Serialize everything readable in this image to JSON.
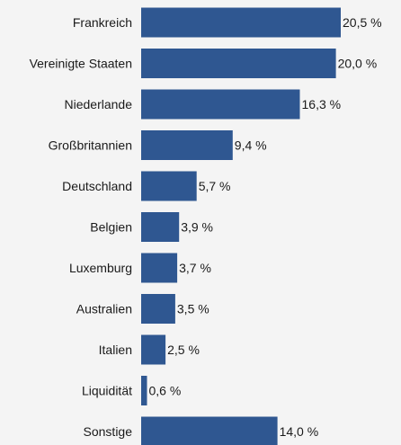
{
  "chart_data": {
    "type": "bar",
    "orientation": "horizontal",
    "categories": [
      "Frankreich",
      "Vereinigte Staaten",
      "Niederlande",
      "Großbritannien",
      "Deutschland",
      "Belgien",
      "Luxemburg",
      "Australien",
      "Italien",
      "Liquidität",
      "Sonstige"
    ],
    "values": [
      20.5,
      20.0,
      16.3,
      9.4,
      5.7,
      3.9,
      3.7,
      3.5,
      2.5,
      0.6,
      14.0
    ],
    "value_labels": [
      "20,5 %",
      "20,0 %",
      "16,3 %",
      "9,4 %",
      "5,7 %",
      "3,9 %",
      "3,7 %",
      "3,5 %",
      "2,5 %",
      "0,6 %",
      "14,0 %"
    ],
    "title": "",
    "xlabel": "",
    "ylabel": "",
    "xlim": [
      0,
      20.5
    ],
    "grid": false,
    "legend": "none",
    "bar_color": "#2f5791",
    "background_color": "#f4f4f4"
  }
}
